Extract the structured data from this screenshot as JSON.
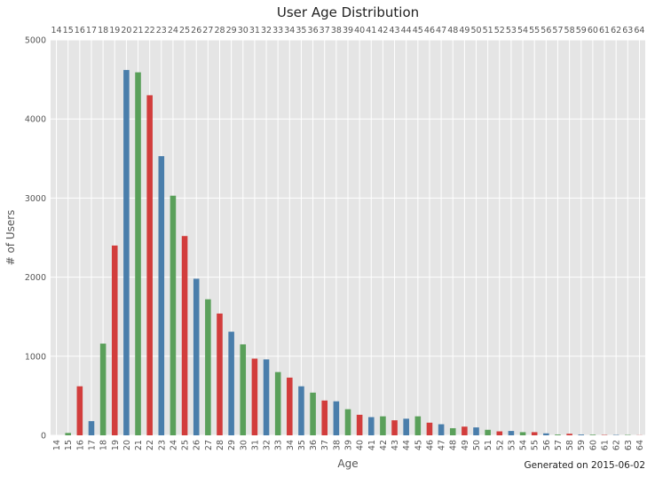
{
  "chart_data": {
    "type": "bar",
    "title": "User Age Distribution",
    "xlabel": "Age",
    "ylabel": "# of Users",
    "footnote": "Generated on 2015-06-02",
    "categories": [
      "14",
      "15",
      "16",
      "17",
      "18",
      "19",
      "20",
      "21",
      "22",
      "23",
      "24",
      "25",
      "26",
      "27",
      "28",
      "29",
      "30",
      "31",
      "32",
      "33",
      "34",
      "35",
      "36",
      "37",
      "38",
      "39",
      "40",
      "41",
      "42",
      "43",
      "44",
      "45",
      "46",
      "47",
      "48",
      "49",
      "50",
      "51",
      "52",
      "53",
      "54",
      "55",
      "56",
      "57",
      "58",
      "59",
      "60",
      "61",
      "62",
      "63",
      "64"
    ],
    "values": [
      0,
      30,
      620,
      180,
      1160,
      2400,
      4620,
      4590,
      4300,
      3530,
      3030,
      2520,
      1980,
      1720,
      1540,
      1310,
      1150,
      970,
      960,
      800,
      730,
      620,
      540,
      440,
      430,
      330,
      260,
      230,
      240,
      190,
      210,
      240,
      160,
      140,
      90,
      110,
      100,
      70,
      50,
      55,
      40,
      40,
      25,
      10,
      20,
      10,
      8,
      5,
      5,
      5,
      2
    ],
    "ylim": [
      0,
      5000
    ],
    "yticks": [
      0,
      1000,
      2000,
      3000,
      4000,
      5000
    ],
    "bar_colors": [
      "#4a7eab",
      "#5aa05a",
      "#d23d3c"
    ],
    "background_color": "#e5e5e5",
    "grid": true,
    "top_axis_labels": true
  }
}
